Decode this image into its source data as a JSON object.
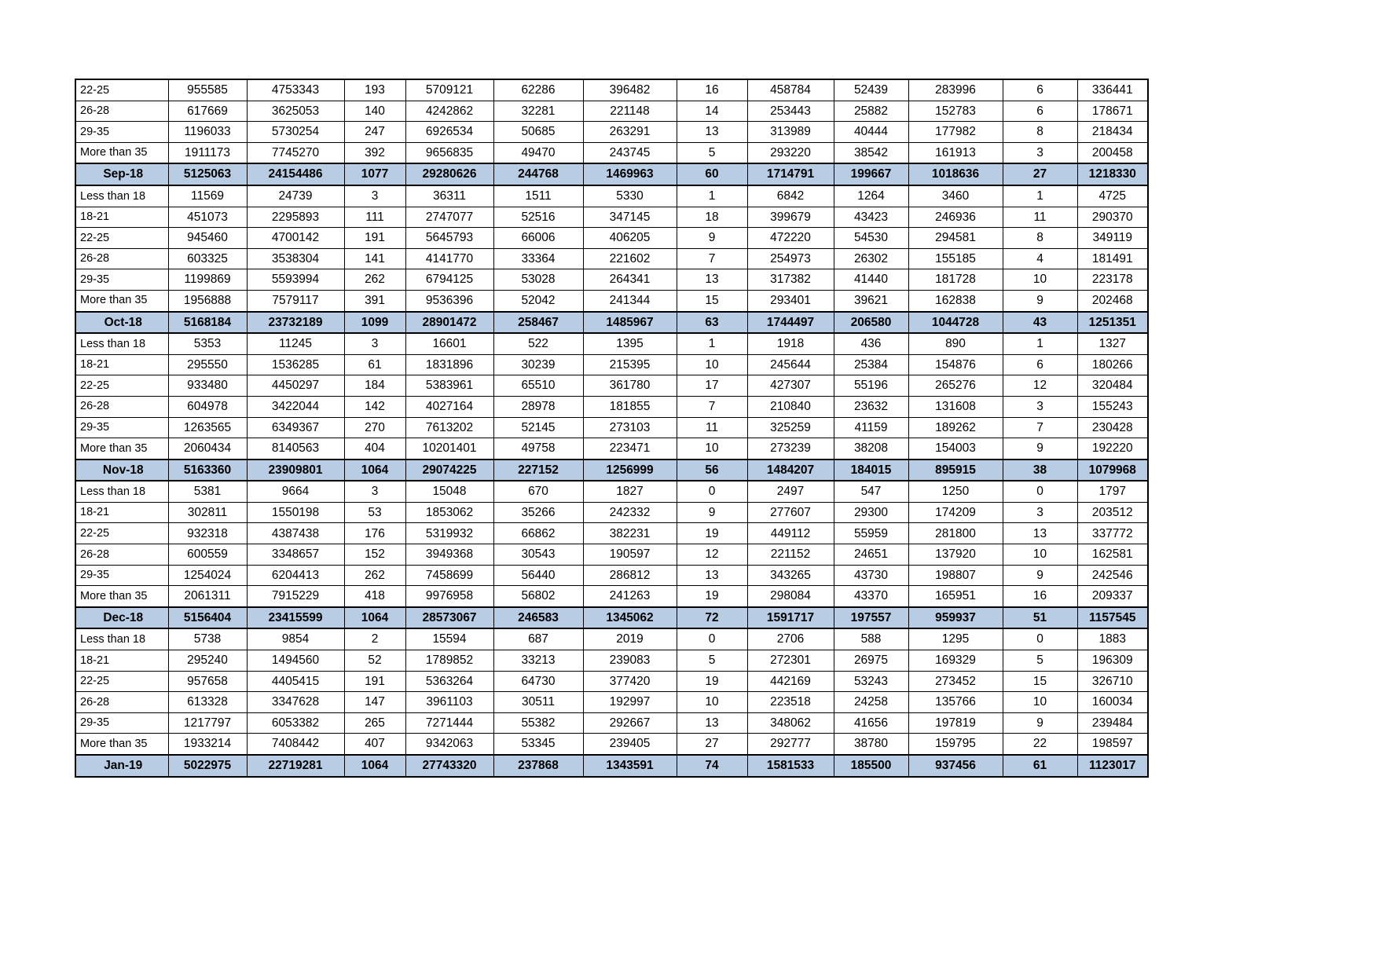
{
  "colors": {
    "summary_band": "#b8cce4",
    "border": "#000000",
    "background": "#ffffff"
  },
  "table": {
    "rows": [
      {
        "type": "data",
        "label": "22-25",
        "values": [
          "955585",
          "4753343",
          "193",
          "5709121",
          "62286",
          "396482",
          "16",
          "458784",
          "52439",
          "283996",
          "6",
          "336441"
        ]
      },
      {
        "type": "data",
        "label": "26-28",
        "values": [
          "617669",
          "3625053",
          "140",
          "4242862",
          "32281",
          "221148",
          "14",
          "253443",
          "25882",
          "152783",
          "6",
          "178671"
        ]
      },
      {
        "type": "data",
        "label": "29-35",
        "values": [
          "1196033",
          "5730254",
          "247",
          "6926534",
          "50685",
          "263291",
          "13",
          "313989",
          "40444",
          "177982",
          "8",
          "218434"
        ]
      },
      {
        "type": "data",
        "label": "More than 35",
        "values": [
          "1911173",
          "7745270",
          "392",
          "9656835",
          "49470",
          "243745",
          "5",
          "293220",
          "38542",
          "161913",
          "3",
          "200458"
        ]
      },
      {
        "type": "summary",
        "label": "Sep-18",
        "values": [
          "5125063",
          "24154486",
          "1077",
          "29280626",
          "244768",
          "1469963",
          "60",
          "1714791",
          "199667",
          "1018636",
          "27",
          "1218330"
        ]
      },
      {
        "type": "data",
        "label": "Less than 18",
        "values": [
          "11569",
          "24739",
          "3",
          "36311",
          "1511",
          "5330",
          "1",
          "6842",
          "1264",
          "3460",
          "1",
          "4725"
        ]
      },
      {
        "type": "data",
        "label": "18-21",
        "values": [
          "451073",
          "2295893",
          "111",
          "2747077",
          "52516",
          "347145",
          "18",
          "399679",
          "43423",
          "246936",
          "11",
          "290370"
        ]
      },
      {
        "type": "data",
        "label": "22-25",
        "values": [
          "945460",
          "4700142",
          "191",
          "5645793",
          "66006",
          "406205",
          "9",
          "472220",
          "54530",
          "294581",
          "8",
          "349119"
        ]
      },
      {
        "type": "data",
        "label": "26-28",
        "values": [
          "603325",
          "3538304",
          "141",
          "4141770",
          "33364",
          "221602",
          "7",
          "254973",
          "26302",
          "155185",
          "4",
          "181491"
        ]
      },
      {
        "type": "data",
        "label": "29-35",
        "values": [
          "1199869",
          "5593994",
          "262",
          "6794125",
          "53028",
          "264341",
          "13",
          "317382",
          "41440",
          "181728",
          "10",
          "223178"
        ]
      },
      {
        "type": "data",
        "label": "More than 35",
        "values": [
          "1956888",
          "7579117",
          "391",
          "9536396",
          "52042",
          "241344",
          "15",
          "293401",
          "39621",
          "162838",
          "9",
          "202468"
        ]
      },
      {
        "type": "summary",
        "label": "Oct-18",
        "values": [
          "5168184",
          "23732189",
          "1099",
          "28901472",
          "258467",
          "1485967",
          "63",
          "1744497",
          "206580",
          "1044728",
          "43",
          "1251351"
        ]
      },
      {
        "type": "data",
        "label": "Less than 18",
        "values": [
          "5353",
          "11245",
          "3",
          "16601",
          "522",
          "1395",
          "1",
          "1918",
          "436",
          "890",
          "1",
          "1327"
        ]
      },
      {
        "type": "data",
        "label": "18-21",
        "values": [
          "295550",
          "1536285",
          "61",
          "1831896",
          "30239",
          "215395",
          "10",
          "245644",
          "25384",
          "154876",
          "6",
          "180266"
        ]
      },
      {
        "type": "data",
        "label": "22-25",
        "values": [
          "933480",
          "4450297",
          "184",
          "5383961",
          "65510",
          "361780",
          "17",
          "427307",
          "55196",
          "265276",
          "12",
          "320484"
        ]
      },
      {
        "type": "data",
        "label": "26-28",
        "values": [
          "604978",
          "3422044",
          "142",
          "4027164",
          "28978",
          "181855",
          "7",
          "210840",
          "23632",
          "131608",
          "3",
          "155243"
        ]
      },
      {
        "type": "data",
        "label": "29-35",
        "values": [
          "1263565",
          "6349367",
          "270",
          "7613202",
          "52145",
          "273103",
          "11",
          "325259",
          "41159",
          "189262",
          "7",
          "230428"
        ]
      },
      {
        "type": "data",
        "label": "More than 35",
        "values": [
          "2060434",
          "8140563",
          "404",
          "10201401",
          "49758",
          "223471",
          "10",
          "273239",
          "38208",
          "154003",
          "9",
          "192220"
        ]
      },
      {
        "type": "summary",
        "label": "Nov-18",
        "values": [
          "5163360",
          "23909801",
          "1064",
          "29074225",
          "227152",
          "1256999",
          "56",
          "1484207",
          "184015",
          "895915",
          "38",
          "1079968"
        ]
      },
      {
        "type": "data",
        "label": "Less than 18",
        "values": [
          "5381",
          "9664",
          "3",
          "15048",
          "670",
          "1827",
          "0",
          "2497",
          "547",
          "1250",
          "0",
          "1797"
        ]
      },
      {
        "type": "data",
        "label": "18-21",
        "values": [
          "302811",
          "1550198",
          "53",
          "1853062",
          "35266",
          "242332",
          "9",
          "277607",
          "29300",
          "174209",
          "3",
          "203512"
        ]
      },
      {
        "type": "data",
        "label": "22-25",
        "values": [
          "932318",
          "4387438",
          "176",
          "5319932",
          "66862",
          "382231",
          "19",
          "449112",
          "55959",
          "281800",
          "13",
          "337772"
        ]
      },
      {
        "type": "data",
        "label": "26-28",
        "values": [
          "600559",
          "3348657",
          "152",
          "3949368",
          "30543",
          "190597",
          "12",
          "221152",
          "24651",
          "137920",
          "10",
          "162581"
        ]
      },
      {
        "type": "data",
        "label": "29-35",
        "values": [
          "1254024",
          "6204413",
          "262",
          "7458699",
          "56440",
          "286812",
          "13",
          "343265",
          "43730",
          "198807",
          "9",
          "242546"
        ]
      },
      {
        "type": "data",
        "label": "More than 35",
        "values": [
          "2061311",
          "7915229",
          "418",
          "9976958",
          "56802",
          "241263",
          "19",
          "298084",
          "43370",
          "165951",
          "16",
          "209337"
        ]
      },
      {
        "type": "summary",
        "label": "Dec-18",
        "values": [
          "5156404",
          "23415599",
          "1064",
          "28573067",
          "246583",
          "1345062",
          "72",
          "1591717",
          "197557",
          "959937",
          "51",
          "1157545"
        ]
      },
      {
        "type": "data",
        "label": "Less than 18",
        "values": [
          "5738",
          "9854",
          "2",
          "15594",
          "687",
          "2019",
          "0",
          "2706",
          "588",
          "1295",
          "0",
          "1883"
        ]
      },
      {
        "type": "data",
        "label": "18-21",
        "values": [
          "295240",
          "1494560",
          "52",
          "1789852",
          "33213",
          "239083",
          "5",
          "272301",
          "26975",
          "169329",
          "5",
          "196309"
        ]
      },
      {
        "type": "data",
        "label": "22-25",
        "values": [
          "957658",
          "4405415",
          "191",
          "5363264",
          "64730",
          "377420",
          "19",
          "442169",
          "53243",
          "273452",
          "15",
          "326710"
        ]
      },
      {
        "type": "data",
        "label": "26-28",
        "values": [
          "613328",
          "3347628",
          "147",
          "3961103",
          "30511",
          "192997",
          "10",
          "223518",
          "24258",
          "135766",
          "10",
          "160034"
        ]
      },
      {
        "type": "data",
        "label": "29-35",
        "values": [
          "1217797",
          "6053382",
          "265",
          "7271444",
          "55382",
          "292667",
          "13",
          "348062",
          "41656",
          "197819",
          "9",
          "239484"
        ]
      },
      {
        "type": "data",
        "label": "More than 35",
        "values": [
          "1933214",
          "7408442",
          "407",
          "9342063",
          "53345",
          "239405",
          "27",
          "292777",
          "38780",
          "159795",
          "22",
          "198597"
        ]
      },
      {
        "type": "summary",
        "label": "Jan-19",
        "values": [
          "5022975",
          "22719281",
          "1064",
          "27743320",
          "237868",
          "1343591",
          "74",
          "1581533",
          "185500",
          "937456",
          "61",
          "1123017"
        ]
      }
    ]
  }
}
